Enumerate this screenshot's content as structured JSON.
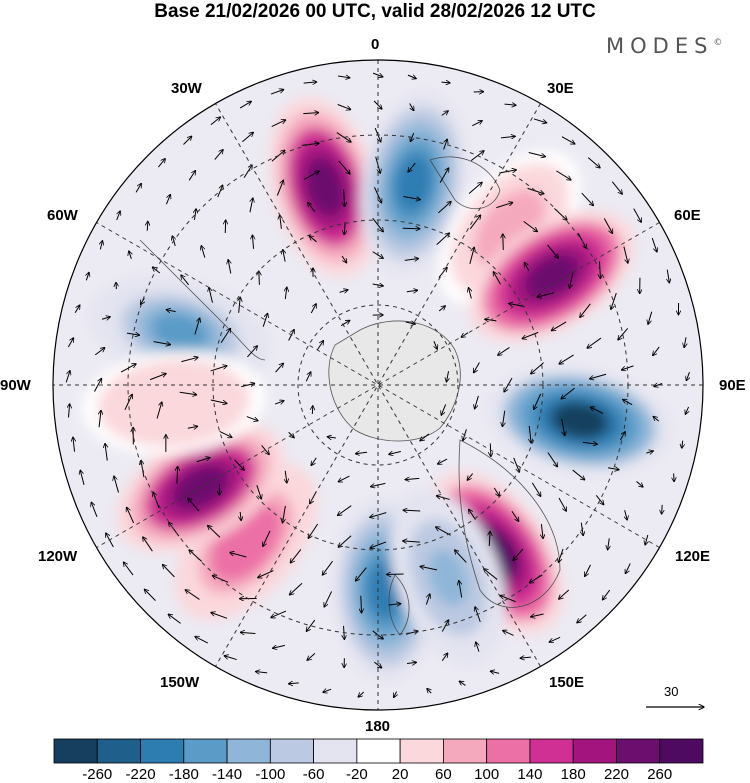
{
  "title": "Base 21/02/2026 00 UTC, valid 28/02/2026 12 UTC",
  "brand": "MODES",
  "brand_mark": "©",
  "lon_labels": {
    "top": "0",
    "top_left": "30W",
    "top_right": "30E",
    "upper_left": "60W",
    "upper_right": "60E",
    "left": "90W",
    "right": "90E",
    "lower_left": "120W",
    "lower_right": "120E",
    "bottom_left": "150W",
    "bottom_right": "150E",
    "bottom": "180"
  },
  "reference_vector": "30",
  "colorbar": {
    "ticks": [
      "-260",
      "-220",
      "-180",
      "-140",
      "-100",
      "-60",
      "-20",
      "20",
      "60",
      "100",
      "140",
      "180",
      "220",
      "260"
    ],
    "colors": [
      "#163f5f",
      "#1e5f8c",
      "#2d7db3",
      "#5a9bc8",
      "#8fb6d8",
      "#bcc9e2",
      "#e3e4f0",
      "#ffffff",
      "#fbd8dc",
      "#f5a9bd",
      "#ec6fa6",
      "#d02f93",
      "#a3147f",
      "#6c0e6e",
      "#4d0a60"
    ]
  },
  "anomaly_centers": [
    {
      "lon_deg": -15,
      "sign": "positive",
      "strength": 240
    },
    {
      "lon_deg": 10,
      "sign": "negative",
      "strength": -180
    },
    {
      "lon_deg": 40,
      "sign": "positive",
      "strength": 100
    },
    {
      "lon_deg": 58,
      "sign": "positive",
      "strength": 260
    },
    {
      "lon_deg": 100,
      "sign": "negative",
      "strength": -260
    },
    {
      "lon_deg": 145,
      "sign": "positive",
      "strength": 270
    },
    {
      "lon_deg": 178,
      "sign": "negative",
      "strength": -200
    },
    {
      "lon_deg": 160,
      "sign": "negative",
      "strength": -120
    },
    {
      "lon_deg": -140,
      "sign": "positive",
      "strength": 130
    },
    {
      "lon_deg": -120,
      "sign": "positive",
      "strength": 240
    },
    {
      "lon_deg": -75,
      "sign": "negative",
      "strength": -140
    },
    {
      "lon_deg": -95,
      "sign": "positive",
      "strength": 60
    }
  ]
}
